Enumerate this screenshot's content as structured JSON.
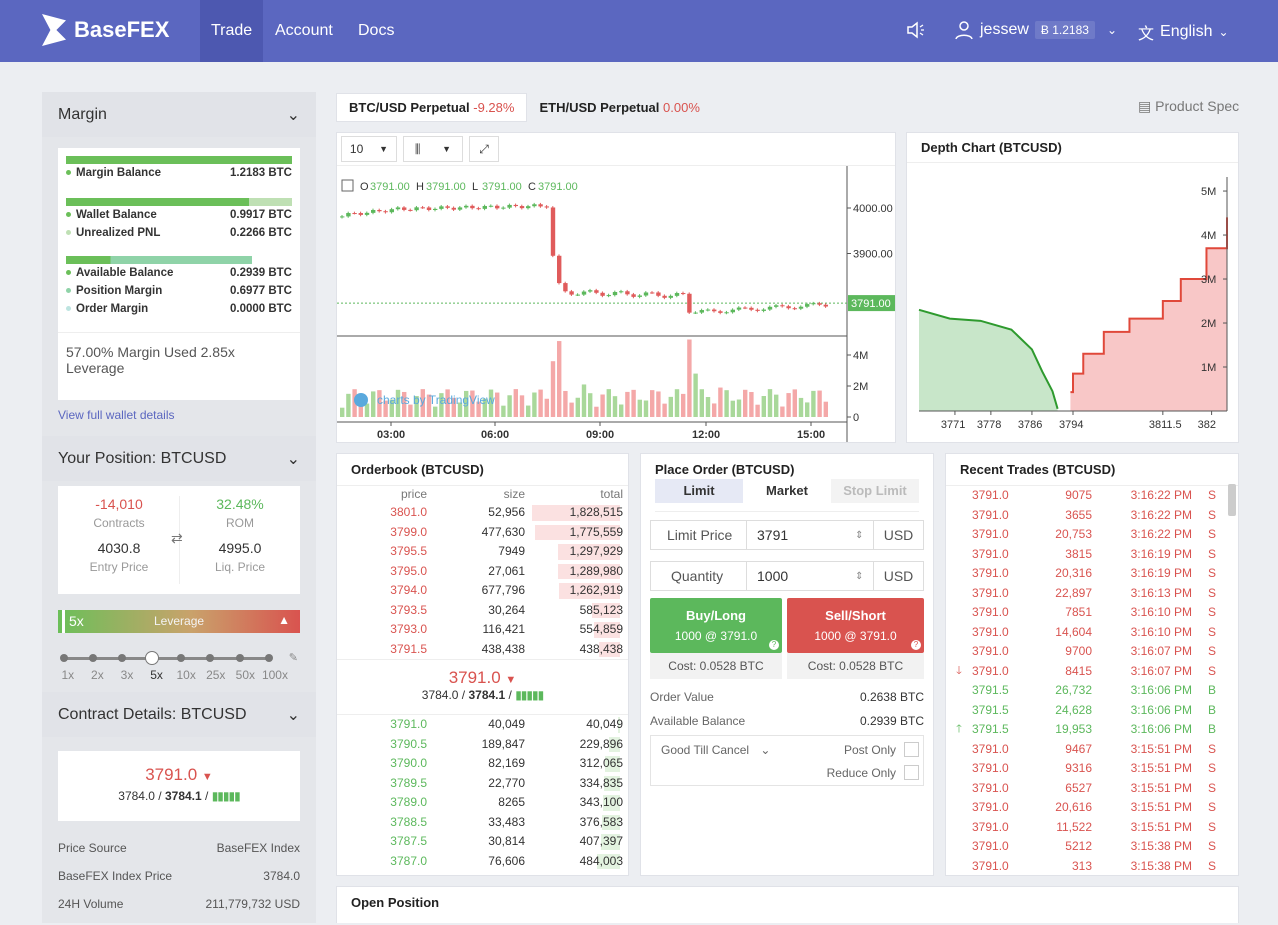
{
  "topbar": {
    "brand": "BaseFEX",
    "nav": [
      "Trade",
      "Account",
      "Docs"
    ],
    "username": "jessew",
    "balance": "Ƀ 1.2183",
    "language": "English"
  },
  "margin": {
    "title": "Margin",
    "balance_label": "Margin Balance",
    "balance_value": "1.2183 BTC",
    "wallet_label": "Wallet Balance",
    "wallet_value": "0.9917 BTC",
    "pnl_label": "Unrealized PNL",
    "pnl_value": "0.2266 BTC",
    "available_label": "Available Balance",
    "available_value": "0.2939 BTC",
    "position_label": "Position Margin",
    "position_value": "0.6977 BTC",
    "order_label": "Order Margin",
    "order_value": "0.0000 BTC",
    "summary": "57.00% Margin Used 2.85x Leverage",
    "wallet_link": "View full wallet details"
  },
  "position": {
    "title": "Your Position: BTCUSD",
    "contracts_value": "-14,010",
    "contracts_label": "Contracts",
    "rom_value": "32.48%",
    "rom_label": "ROM",
    "entry_value": "4030.8",
    "entry_label": "Entry Price",
    "liq_value": "4995.0",
    "liq_label": "Liq. Price",
    "leverage_value": "5x",
    "leverage_label": "Leverage",
    "leverage_ticks": [
      "1x",
      "2x",
      "3x",
      "5x",
      "10x",
      "25x",
      "50x",
      "100x"
    ],
    "leverage_fraction": 0.4
  },
  "contract": {
    "title": "Contract Details: BTCUSD",
    "last_price": "3791.0",
    "index_price": "3784.0",
    "mark_price": "3784.1",
    "price_source_label": "Price Source",
    "price_source_value": "BaseFEX Index",
    "index_label": "BaseFEX Index Price",
    "index_value": "3784.0",
    "volume_label": "24H Volume",
    "volume_value": "211,779,732 USD"
  },
  "symbols": [
    {
      "name": "BTC/USD Perpetual",
      "change": "-9.28%"
    },
    {
      "name": "ETH/USD Perpetual",
      "change": "0.00%"
    }
  ],
  "product_spec": "Product Spec",
  "price_chart": {
    "interval": "10",
    "ohlc_o_label": "O",
    "ohlc_o": "3791.00",
    "ohlc_h_label": "H",
    "ohlc_h": "3791.00",
    "ohlc_l_label": "L",
    "ohlc_l": "3791.00",
    "ohlc_c_label": "C",
    "ohlc_c": "3791.00",
    "price_ticks": [
      "4000.00",
      "3900.00"
    ],
    "last_tag": "3791.00",
    "volume_ticks": [
      "4M",
      "2M",
      "0"
    ],
    "time_ticks": [
      "03:00",
      "06:00",
      "09:00",
      "12:00",
      "15:00"
    ],
    "watermark": "charts by TradingView"
  },
  "depth_chart": {
    "title": "Depth Chart (BTCUSD)",
    "y_ticks": [
      "5M",
      "4M",
      "3M",
      "2M",
      "1M"
    ],
    "x_ticks": [
      "3771",
      "3778",
      "3786",
      "3794",
      "3811.5",
      "382"
    ]
  },
  "chart_data": {
    "type": "area",
    "title": "Depth Chart (BTCUSD)",
    "series": [
      {
        "name": "bids",
        "x": [
          3764,
          3770,
          3776,
          3782,
          3786,
          3788,
          3790,
          3791
        ],
        "values": [
          2.3,
          2.1,
          2.05,
          1.85,
          1.4,
          0.9,
          0.45,
          0.05
        ]
      },
      {
        "name": "asks",
        "x": [
          3793.5,
          3794,
          3796,
          3800,
          3805,
          3811.5,
          3815,
          3820,
          3824
        ],
        "values": [
          0.43,
          0.85,
          1.3,
          1.8,
          2.1,
          2.5,
          3.0,
          3.7,
          4.4
        ]
      }
    ],
    "ylim": [
      0,
      5
    ],
    "xlabel": "",
    "ylabel": ""
  },
  "orderbook": {
    "title": "Orderbook (BTCUSD)",
    "headers": [
      "price",
      "size",
      "total"
    ],
    "asks": [
      [
        "3801.0",
        "52,956",
        "1,828,515"
      ],
      [
        "3799.0",
        "477,630",
        "1,775,559"
      ],
      [
        "3795.5",
        "7949",
        "1,297,929"
      ],
      [
        "3795.0",
        "27,061",
        "1,289,980"
      ],
      [
        "3794.0",
        "677,796",
        "1,262,919"
      ],
      [
        "3793.5",
        "30,264",
        "585,123"
      ],
      [
        "3793.0",
        "116,421",
        "554,859"
      ],
      [
        "3791.5",
        "438,438",
        "438,438"
      ]
    ],
    "ask_depth": [
      1.0,
      0.97,
      0.71,
      0.7,
      0.69,
      0.32,
      0.3,
      0.24
    ],
    "last_price": "3791.0",
    "index_price": "3784.0",
    "mark_price": "3784.1",
    "bids": [
      [
        "3791.0",
        "40,049",
        "40,049"
      ],
      [
        "3790.5",
        "189,847",
        "229,896"
      ],
      [
        "3790.0",
        "82,169",
        "312,065"
      ],
      [
        "3789.5",
        "22,770",
        "334,835"
      ],
      [
        "3789.0",
        "8265",
        "343,100"
      ],
      [
        "3788.5",
        "33,483",
        "376,583"
      ],
      [
        "3787.5",
        "30,814",
        "407,397"
      ],
      [
        "3787.0",
        "76,606",
        "484,003"
      ]
    ],
    "bid_depth": [
      0.02,
      0.12,
      0.17,
      0.18,
      0.19,
      0.2,
      0.22,
      0.26
    ]
  },
  "order": {
    "title": "Place Order (BTCUSD)",
    "tabs": [
      "Limit",
      "Market",
      "Stop Limit"
    ],
    "price_label": "Limit Price",
    "price_value": "3791",
    "price_unit": "USD",
    "qty_label": "Quantity",
    "qty_value": "1000",
    "qty_unit": "USD",
    "buy_label": "Buy/Long",
    "buy_sub": "1000 @ 3791.0",
    "buy_cost": "Cost: 0.0528 BTC",
    "sell_label": "Sell/Short",
    "sell_sub": "1000 @ 3791.0",
    "sell_cost": "Cost: 0.0528 BTC",
    "value_label": "Order Value",
    "value_value": "0.2638 BTC",
    "avail_label": "Available Balance",
    "avail_value": "0.2939 BTC",
    "tif": "Good Till Cancel",
    "post_only": "Post Only",
    "reduce_only": "Reduce Only"
  },
  "trades": {
    "title": "Recent Trades (BTCUSD)",
    "rows": [
      [
        "3791.0",
        "9075",
        "3:16:22 PM",
        "S"
      ],
      [
        "3791.0",
        "3655",
        "3:16:22 PM",
        "S"
      ],
      [
        "3791.0",
        "20,753",
        "3:16:22 PM",
        "S"
      ],
      [
        "3791.0",
        "3815",
        "3:16:19 PM",
        "S"
      ],
      [
        "3791.0",
        "20,316",
        "3:16:19 PM",
        "S"
      ],
      [
        "3791.0",
        "22,897",
        "3:16:13 PM",
        "S"
      ],
      [
        "3791.0",
        "7851",
        "3:16:10 PM",
        "S"
      ],
      [
        "3791.0",
        "14,604",
        "3:16:10 PM",
        "S"
      ],
      [
        "3791.0",
        "9700",
        "3:16:07 PM",
        "S"
      ],
      [
        "3791.0",
        "8415",
        "3:16:07 PM",
        "S"
      ],
      [
        "3791.5",
        "26,732",
        "3:16:06 PM",
        "B"
      ],
      [
        "3791.5",
        "24,628",
        "3:16:06 PM",
        "B"
      ],
      [
        "3791.5",
        "19,953",
        "3:16:06 PM",
        "B"
      ],
      [
        "3791.0",
        "9467",
        "3:15:51 PM",
        "S"
      ],
      [
        "3791.0",
        "9316",
        "3:15:51 PM",
        "S"
      ],
      [
        "3791.0",
        "6527",
        "3:15:51 PM",
        "S"
      ],
      [
        "3791.0",
        "20,616",
        "3:15:51 PM",
        "S"
      ],
      [
        "3791.0",
        "11,522",
        "3:15:51 PM",
        "S"
      ],
      [
        "3791.0",
        "5212",
        "3:15:38 PM",
        "S"
      ],
      [
        "3791.0",
        "313",
        "3:15:38 PM",
        "S"
      ]
    ],
    "markers": {
      "9": "down",
      "12": "up"
    }
  },
  "open_position": {
    "title": "Open Position"
  },
  "colors": {
    "brand": "#5b67c0",
    "buy": "#5cb85c",
    "sell": "#d9534f",
    "depth_bid": "#c8e6c9",
    "depth_ask": "#f8c7c7"
  }
}
